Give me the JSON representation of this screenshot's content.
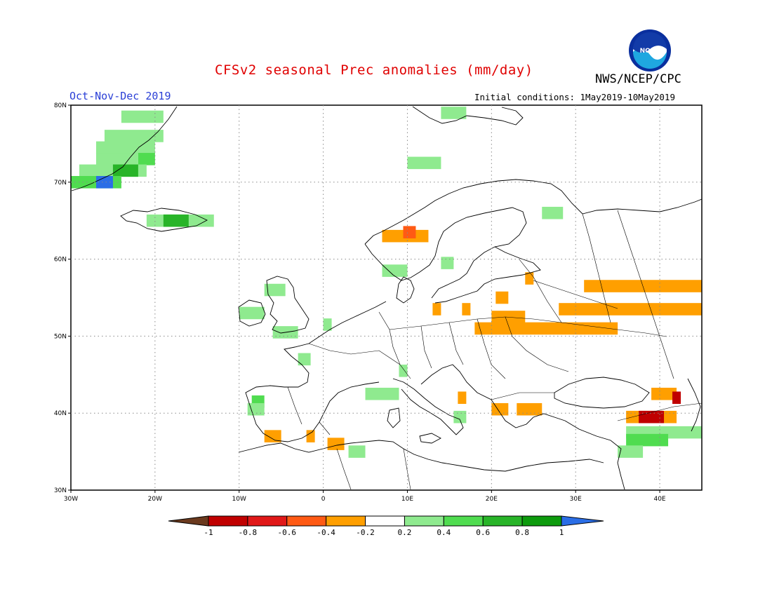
{
  "header": {
    "title": "CFSv2 seasonal Prec anomalies (mm/day)",
    "period": "Oct-Nov-Dec 2019",
    "initial_conditions": "Initial conditions: 1May2019-10May2019",
    "agency": "NWS/NCEP/CPC",
    "logo_text": "NOAA"
  },
  "map": {
    "lon_range": [
      -30,
      45
    ],
    "lat_range": [
      30,
      80
    ],
    "lat_ticks": [
      "80N",
      "70N",
      "60N",
      "50N",
      "40N",
      "30N"
    ],
    "lon_ticks": [
      "30W",
      "20W",
      "10W",
      "0",
      "10E",
      "20E",
      "30E",
      "40E"
    ]
  },
  "legend": {
    "labels": [
      "-1",
      "-0.8",
      "-0.6",
      "-0.4",
      "-0.2",
      "0.2",
      "0.4",
      "0.6",
      "0.8",
      "1"
    ],
    "colors": [
      "#6b3a1e",
      "#c00000",
      "#e01818",
      "#ff5a14",
      "#ff9f00",
      "#ffffff",
      "#8fea8f",
      "#50dc50",
      "#28b428",
      "#0d9b0d",
      "#2b6ee6"
    ]
  },
  "anomalies": [
    {
      "lat": 78.5,
      "lon1": -24,
      "lon2": -19,
      "color": "#8fea8f"
    },
    {
      "lat": 76,
      "lon1": -26,
      "lon2": -19,
      "color": "#8fea8f"
    },
    {
      "lat": 74.5,
      "lon1": -27,
      "lon2": -20,
      "color": "#8fea8f"
    },
    {
      "lat": 73,
      "lon1": -27,
      "lon2": -22,
      "color": "#8fea8f"
    },
    {
      "lat": 73,
      "lon1": -22,
      "lon2": -20,
      "color": "#50dc50"
    },
    {
      "lat": 71.5,
      "lon1": -29,
      "lon2": -21,
      "color": "#8fea8f"
    },
    {
      "lat": 71.5,
      "lon1": -25,
      "lon2": -22,
      "color": "#28b428"
    },
    {
      "lat": 70,
      "lon1": -30,
      "lon2": -24,
      "color": "#50dc50"
    },
    {
      "lat": 70,
      "lon1": -27,
      "lon2": -25,
      "color": "#2b6ee6"
    },
    {
      "lat": 65,
      "lon1": -21,
      "lon2": -13,
      "color": "#8fea8f"
    },
    {
      "lat": 65,
      "lon1": -19,
      "lon2": -16,
      "color": "#28b428"
    },
    {
      "lat": 72.5,
      "lon1": 10,
      "lon2": 14,
      "color": "#8fea8f"
    },
    {
      "lat": 79,
      "lon1": 14,
      "lon2": 17,
      "color": "#8fea8f"
    },
    {
      "lat": 66,
      "lon1": 26,
      "lon2": 28.5,
      "color": "#8fea8f"
    },
    {
      "lat": 63,
      "lon1": 7,
      "lon2": 12.5,
      "color": "#ff9f00"
    },
    {
      "lat": 63.5,
      "lon1": 9.5,
      "lon2": 11,
      "color": "#ff5a14"
    },
    {
      "lat": 58.5,
      "lon1": 7,
      "lon2": 10,
      "color": "#8fea8f"
    },
    {
      "lat": 59.5,
      "lon1": 14,
      "lon2": 15.5,
      "color": "#8fea8f"
    },
    {
      "lat": 56,
      "lon1": -7,
      "lon2": -4.5,
      "color": "#8fea8f"
    },
    {
      "lat": 53,
      "lon1": -10,
      "lon2": -7,
      "color": "#8fea8f"
    },
    {
      "lat": 50.5,
      "lon1": -6,
      "lon2": -3,
      "color": "#8fea8f"
    },
    {
      "lat": 51.5,
      "lon1": 0,
      "lon2": 1,
      "color": "#8fea8f"
    },
    {
      "lat": 47,
      "lon1": -3,
      "lon2": -1.5,
      "color": "#8fea8f"
    },
    {
      "lat": 42.5,
      "lon1": 5,
      "lon2": 9,
      "color": "#8fea8f"
    },
    {
      "lat": 45.5,
      "lon1": 9,
      "lon2": 10,
      "color": "#8fea8f"
    },
    {
      "lat": 41.5,
      "lon1": -8.5,
      "lon2": -7,
      "color": "#50dc50"
    },
    {
      "lat": 40.5,
      "lon1": -9,
      "lon2": -7,
      "color": "#8fea8f"
    },
    {
      "lat": 37,
      "lon1": -7,
      "lon2": -5,
      "color": "#ff9f00"
    },
    {
      "lat": 37,
      "lon1": -2,
      "lon2": -1,
      "color": "#ff9f00"
    },
    {
      "lat": 36,
      "lon1": 0.5,
      "lon2": 2.5,
      "color": "#ff9f00"
    },
    {
      "lat": 35,
      "lon1": 3,
      "lon2": 5,
      "color": "#8fea8f"
    },
    {
      "lat": 39.5,
      "lon1": 15.5,
      "lon2": 17,
      "color": "#8fea8f"
    },
    {
      "lat": 42,
      "lon1": 16,
      "lon2": 17,
      "color": "#ff9f00"
    },
    {
      "lat": 40.5,
      "lon1": 20,
      "lon2": 22,
      "color": "#ff9f00"
    },
    {
      "lat": 40.5,
      "lon1": 23,
      "lon2": 26,
      "color": "#ff9f00"
    },
    {
      "lat": 56.5,
      "lon1": 31,
      "lon2": 45,
      "color": "#ff9f00"
    },
    {
      "lat": 53.5,
      "lon1": 28,
      "lon2": 45,
      "color": "#ff9f00"
    },
    {
      "lat": 51,
      "lon1": 18,
      "lon2": 35,
      "color": "#ff9f00"
    },
    {
      "lat": 52.5,
      "lon1": 20,
      "lon2": 24,
      "color": "#ff9f00"
    },
    {
      "lat": 53.5,
      "lon1": 13,
      "lon2": 14,
      "color": "#ff9f00"
    },
    {
      "lat": 53.5,
      "lon1": 16.5,
      "lon2": 17.5,
      "color": "#ff9f00"
    },
    {
      "lat": 55,
      "lon1": 20.5,
      "lon2": 22,
      "color": "#ff9f00"
    },
    {
      "lat": 57.5,
      "lon1": 24,
      "lon2": 25,
      "color": "#ff9f00"
    },
    {
      "lat": 42.5,
      "lon1": 39,
      "lon2": 42,
      "color": "#ff9f00"
    },
    {
      "lat": 42,
      "lon1": 41.5,
      "lon2": 42.5,
      "color": "#c00000"
    },
    {
      "lat": 39.5,
      "lon1": 36,
      "lon2": 42,
      "color": "#ff9f00"
    },
    {
      "lat": 39.5,
      "lon1": 37.5,
      "lon2": 40.5,
      "color": "#c00000"
    },
    {
      "lat": 37.5,
      "lon1": 36,
      "lon2": 45,
      "color": "#8fea8f"
    },
    {
      "lat": 36.5,
      "lon1": 36,
      "lon2": 41,
      "color": "#50dc50"
    },
    {
      "lat": 35,
      "lon1": 35,
      "lon2": 38,
      "color": "#8fea8f"
    }
  ]
}
